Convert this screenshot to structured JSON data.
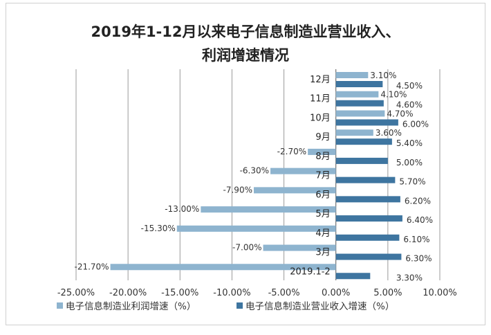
{
  "chart_data": {
    "type": "bar",
    "orientation": "horizontal",
    "title": "2019年1-12月以来电子信息制造业营业收入、利润增速情况",
    "title_lines": [
      "2019年1-12月以来电子信息制造业营业收入、",
      "利润增速情况"
    ],
    "categories": [
      "12月",
      "11月",
      "10月",
      "9月",
      "8月",
      "7月",
      "6月",
      "5月",
      "4月",
      "3月",
      "2019.1-2"
    ],
    "series": [
      {
        "name": "电子信息制造业利润增速（%）",
        "color": "#8eb4cf",
        "values": [
          3.1,
          4.1,
          4.7,
          3.6,
          -2.7,
          -6.3,
          -7.9,
          -13.0,
          -15.3,
          -7.0,
          -21.7
        ],
        "labels": [
          "3.10%",
          "4.10%",
          "4.70%",
          "3.60%",
          "-2.70%",
          "-6.30%",
          "-7.90%",
          "-13.00%",
          "-15.30%",
          "-7.00%",
          "-21.70%"
        ]
      },
      {
        "name": "电子信息制造业营业收入增速（%）",
        "color": "#3e75a0",
        "values": [
          4.5,
          4.6,
          6.0,
          5.4,
          5.0,
          5.7,
          6.2,
          6.4,
          6.1,
          6.3,
          3.3
        ],
        "labels": [
          "4.50%",
          "4.60%",
          "6.00%",
          "5.40%",
          "5.00%",
          "5.70%",
          "6.20%",
          "6.40%",
          "6.10%",
          "6.30%",
          "3.30%"
        ]
      }
    ],
    "xlim": [
      -25,
      10
    ],
    "xticks": [
      "-25.00%",
      "-20.00%",
      "-15.00%",
      "-10.00%",
      "-5.00%",
      "0.00%",
      "5.00%",
      "10.00%"
    ],
    "grid": true,
    "legend": "bottom"
  }
}
